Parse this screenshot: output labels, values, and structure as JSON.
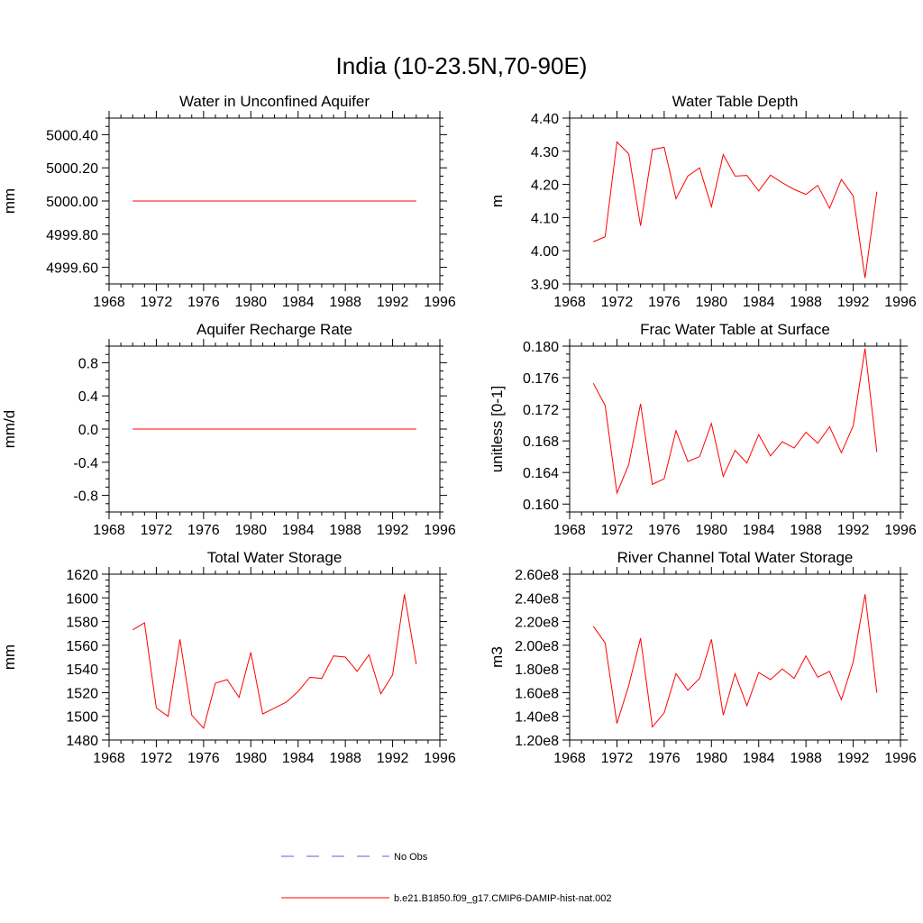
{
  "figure": {
    "title": "India (10-23.5N,70-90E)",
    "legend": [
      {
        "label": "No Obs",
        "color": "#5566cc",
        "dash": true
      },
      {
        "label": "b.e21.B1850.f09_g17.CMIP6-DAMIP-hist-nat.002",
        "color": "#ff0000",
        "dash": false
      }
    ]
  },
  "chart_data": [
    {
      "type": "line",
      "title": "Water in Unconfined Aquifer",
      "xlabel": "",
      "ylabel": "mm",
      "xlim": [
        1968,
        1996
      ],
      "ylim": [
        4999.5,
        5000.5
      ],
      "xticks": [
        1968,
        1972,
        1976,
        1980,
        1984,
        1988,
        1992,
        1996
      ],
      "yticks": [
        4999.6,
        4999.8,
        5000.0,
        5000.2,
        5000.4
      ],
      "ytick_labels": [
        "4999.60",
        "4999.80",
        "5000.00",
        "5000.20",
        "5000.40"
      ],
      "series": [
        {
          "color": "#ff0000",
          "x": [
            1970,
            1971,
            1972,
            1973,
            1974,
            1975,
            1976,
            1977,
            1978,
            1979,
            1980,
            1981,
            1982,
            1983,
            1984,
            1985,
            1986,
            1987,
            1988,
            1989,
            1990,
            1991,
            1992,
            1993,
            1994
          ],
          "y": [
            5000,
            5000,
            5000,
            5000,
            5000,
            5000,
            5000,
            5000,
            5000,
            5000,
            5000,
            5000,
            5000,
            5000,
            5000,
            5000,
            5000,
            5000,
            5000,
            5000,
            5000,
            5000,
            5000,
            5000,
            5000
          ]
        }
      ]
    },
    {
      "type": "line",
      "title": "Water Table Depth",
      "xlabel": "",
      "ylabel": "m",
      "xlim": [
        1968,
        1996
      ],
      "ylim": [
        3.9,
        4.4
      ],
      "xticks": [
        1968,
        1972,
        1976,
        1980,
        1984,
        1988,
        1992,
        1996
      ],
      "yticks": [
        3.9,
        4.0,
        4.1,
        4.2,
        4.3,
        4.4
      ],
      "ytick_labels": [
        "3.90",
        "4.00",
        "4.10",
        "4.20",
        "4.30",
        "4.40"
      ],
      "series": [
        {
          "color": "#ff0000",
          "x": [
            1970,
            1971,
            1972,
            1973,
            1974,
            1975,
            1976,
            1977,
            1978,
            1979,
            1980,
            1981,
            1982,
            1983,
            1984,
            1985,
            1986,
            1987,
            1988,
            1989,
            1990,
            1991,
            1992,
            1993,
            1994
          ],
          "y": [
            4.027,
            4.042,
            4.328,
            4.292,
            4.075,
            4.305,
            4.312,
            4.157,
            4.225,
            4.25,
            4.133,
            4.29,
            4.225,
            4.227,
            4.18,
            4.228,
            4.205,
            4.185,
            4.17,
            4.197,
            4.128,
            4.215,
            4.165,
            3.918,
            4.178
          ]
        }
      ]
    },
    {
      "type": "line",
      "title": "Aquifer Recharge Rate",
      "xlabel": "",
      "ylabel": "mm/d",
      "xlim": [
        1968,
        1996
      ],
      "ylim": [
        -1.0,
        1.0
      ],
      "xticks": [
        1968,
        1972,
        1976,
        1980,
        1984,
        1988,
        1992,
        1996
      ],
      "yticks": [
        -0.8,
        -0.4,
        0.0,
        0.4,
        0.8
      ],
      "ytick_labels": [
        "-0.8",
        "-0.4",
        "0.0",
        "0.4",
        "0.8"
      ],
      "series": [
        {
          "color": "#ff0000",
          "x": [
            1970,
            1971,
            1972,
            1973,
            1974,
            1975,
            1976,
            1977,
            1978,
            1979,
            1980,
            1981,
            1982,
            1983,
            1984,
            1985,
            1986,
            1987,
            1988,
            1989,
            1990,
            1991,
            1992,
            1993,
            1994
          ],
          "y": [
            0,
            0,
            0,
            0,
            0,
            0,
            0,
            0,
            0,
            0,
            0,
            0,
            0,
            0,
            0,
            0,
            0,
            0,
            0,
            0,
            0,
            0,
            0,
            0,
            0
          ]
        }
      ]
    },
    {
      "type": "line",
      "title": "Frac Water Table at Surface",
      "xlabel": "",
      "ylabel": "unitless [0-1]",
      "xlim": [
        1968,
        1996
      ],
      "ylim": [
        0.159,
        0.18
      ],
      "xticks": [
        1968,
        1972,
        1976,
        1980,
        1984,
        1988,
        1992,
        1996
      ],
      "yticks": [
        0.16,
        0.164,
        0.168,
        0.172,
        0.176,
        0.18
      ],
      "ytick_labels": [
        "0.160",
        "0.164",
        "0.168",
        "0.172",
        "0.176",
        "0.180"
      ],
      "series": [
        {
          "color": "#ff0000",
          "x": [
            1970,
            1971,
            1972,
            1973,
            1974,
            1975,
            1976,
            1977,
            1978,
            1979,
            1980,
            1981,
            1982,
            1983,
            1984,
            1985,
            1986,
            1987,
            1988,
            1989,
            1990,
            1991,
            1992,
            1993,
            1994
          ],
          "y": [
            0.1753,
            0.1725,
            0.1614,
            0.165,
            0.1727,
            0.1625,
            0.1632,
            0.1693,
            0.1654,
            0.166,
            0.1702,
            0.1635,
            0.1668,
            0.1652,
            0.1688,
            0.1661,
            0.1679,
            0.1671,
            0.1691,
            0.1677,
            0.1698,
            0.1665,
            0.1699,
            0.1797,
            0.1666
          ]
        }
      ]
    },
    {
      "type": "line",
      "title": "Total Water Storage",
      "xlabel": "",
      "ylabel": "mm",
      "xlim": [
        1968,
        1996
      ],
      "ylim": [
        1480,
        1620
      ],
      "xticks": [
        1968,
        1972,
        1976,
        1980,
        1984,
        1988,
        1992,
        1996
      ],
      "yticks": [
        1480,
        1500,
        1520,
        1540,
        1560,
        1580,
        1600,
        1620
      ],
      "ytick_labels": [
        "1480",
        "1500",
        "1520",
        "1540",
        "1560",
        "1580",
        "1600",
        "1620"
      ],
      "series": [
        {
          "color": "#ff0000",
          "x": [
            1970,
            1971,
            1972,
            1973,
            1974,
            1975,
            1976,
            1977,
            1978,
            1979,
            1980,
            1981,
            1982,
            1983,
            1984,
            1985,
            1986,
            1987,
            1988,
            1989,
            1990,
            1991,
            1992,
            1993,
            1994
          ],
          "y": [
            1573,
            1579,
            1507,
            1500,
            1565,
            1501,
            1490,
            1528,
            1531,
            1516,
            1554,
            1502,
            1507,
            1512,
            1521,
            1533,
            1532,
            1551,
            1550,
            1538,
            1552,
            1519,
            1535,
            1603,
            1544
          ]
        }
      ]
    },
    {
      "type": "line",
      "title": "River Channel Total Water Storage",
      "xlabel": "",
      "ylabel": "m3",
      "xlim": [
        1968,
        1996
      ],
      "ylim": [
        120000000,
        260000000
      ],
      "xticks": [
        1968,
        1972,
        1976,
        1980,
        1984,
        1988,
        1992,
        1996
      ],
      "yticks": [
        120000000,
        140000000,
        160000000,
        180000000,
        200000000,
        220000000,
        240000000,
        260000000
      ],
      "ytick_labels": [
        "1.20e8",
        "1.40e8",
        "1.60e8",
        "1.80e8",
        "2.00e8",
        "2.20e8",
        "2.40e8",
        "2.60e8"
      ],
      "series": [
        {
          "color": "#ff0000",
          "x": [
            1970,
            1971,
            1972,
            1973,
            1974,
            1975,
            1976,
            1977,
            1978,
            1979,
            1980,
            1981,
            1982,
            1983,
            1984,
            1985,
            1986,
            1987,
            1988,
            1989,
            1990,
            1991,
            1992,
            1993,
            1994
          ],
          "y": [
            216000000,
            202000000,
            134000000,
            166000000,
            206000000,
            131000000,
            143000000,
            176000000,
            162000000,
            172000000,
            205000000,
            141000000,
            176000000,
            149000000,
            177000000,
            171000000,
            180000000,
            172000000,
            191000000,
            173000000,
            178000000,
            154000000,
            186000000,
            243000000,
            160000000
          ]
        }
      ]
    }
  ]
}
